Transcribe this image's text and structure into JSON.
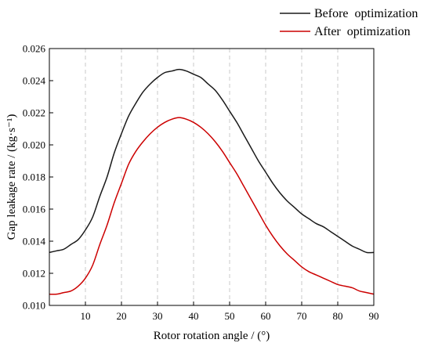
{
  "chart_data": {
    "type": "line",
    "title": "",
    "xlabel": "Rotor rotation angle / (°)",
    "ylabel": "Gap leakage rate / (kg·s⁻¹)",
    "xlim": [
      0,
      90
    ],
    "ylim": [
      0.01,
      0.026
    ],
    "x_ticks": [
      10,
      20,
      30,
      40,
      50,
      60,
      70,
      80,
      90
    ],
    "y_ticks": [
      0.01,
      0.012,
      0.014,
      0.016,
      0.018,
      0.02,
      0.022,
      0.024,
      0.026
    ],
    "x_tick_labels": [
      "10",
      "20",
      "30",
      "40",
      "50",
      "60",
      "70",
      "80",
      "90"
    ],
    "y_tick_labels": [
      "0.010",
      "0.012",
      "0.014",
      "0.016",
      "0.018",
      "0.020",
      "0.022",
      "0.024",
      "0.026"
    ],
    "grid": "vertical dashed",
    "legend_position": "top-right, outside plot",
    "x": [
      0,
      2,
      4,
      6,
      8,
      10,
      12,
      14,
      16,
      18,
      20,
      22,
      24,
      26,
      28,
      30,
      32,
      34,
      36,
      38,
      40,
      42,
      44,
      46,
      48,
      50,
      52,
      54,
      56,
      58,
      60,
      62,
      64,
      66,
      68,
      70,
      72,
      74,
      76,
      78,
      80,
      82,
      84,
      86,
      88,
      90
    ],
    "series": [
      {
        "name": "Before  optimization",
        "color": "#1a1a1a",
        "values": [
          0.0133,
          0.0134,
          0.0135,
          0.0138,
          0.0141,
          0.0147,
          0.0155,
          0.0168,
          0.018,
          0.0195,
          0.0207,
          0.0218,
          0.0226,
          0.0233,
          0.0238,
          0.0242,
          0.0245,
          0.0246,
          0.0247,
          0.0246,
          0.0244,
          0.0242,
          0.0238,
          0.0234,
          0.0228,
          0.0221,
          0.0214,
          0.0206,
          0.0198,
          0.019,
          0.0183,
          0.0176,
          0.017,
          0.0165,
          0.0161,
          0.0157,
          0.0154,
          0.0151,
          0.0149,
          0.0146,
          0.0143,
          0.014,
          0.0137,
          0.0135,
          0.0133,
          0.0133
        ]
      },
      {
        "name": "After  optimization",
        "color": "#cc0000",
        "values": [
          0.0107,
          0.0107,
          0.0108,
          0.0109,
          0.0112,
          0.0117,
          0.0125,
          0.0138,
          0.015,
          0.0164,
          0.0176,
          0.0188,
          0.0196,
          0.0202,
          0.0207,
          0.0211,
          0.0214,
          0.0216,
          0.0217,
          0.0216,
          0.0214,
          0.0211,
          0.0207,
          0.0202,
          0.0196,
          0.0189,
          0.0182,
          0.0174,
          0.0166,
          0.0158,
          0.015,
          0.0143,
          0.0137,
          0.0132,
          0.0128,
          0.0124,
          0.0121,
          0.0119,
          0.0117,
          0.0115,
          0.0113,
          0.0112,
          0.0111,
          0.0109,
          0.0108,
          0.0107
        ]
      }
    ]
  }
}
